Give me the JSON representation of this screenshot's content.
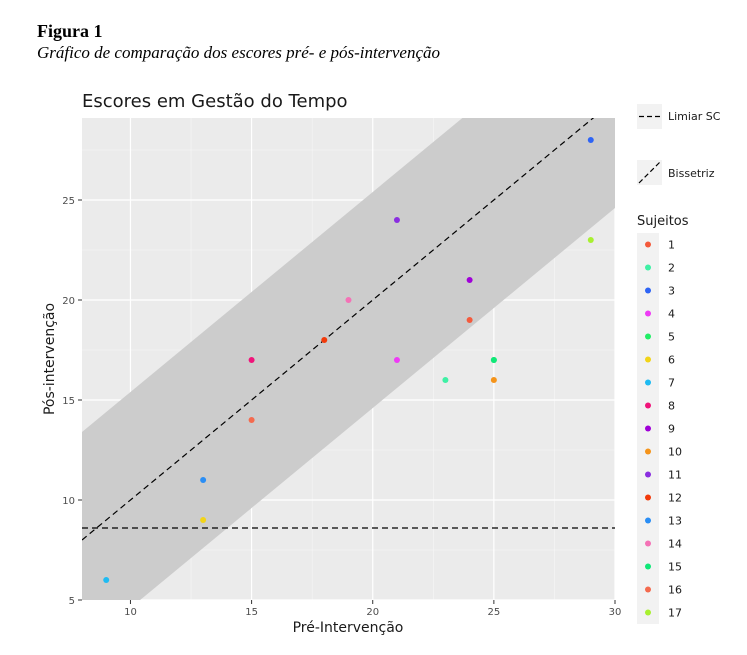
{
  "figure": {
    "number": "Figura 1",
    "caption": "Gráfico de comparação dos escores pré- e pós-intervenção"
  },
  "chart_data": {
    "type": "scatter",
    "title": "Escores em Gestão do Tempo",
    "xlabel": "Pré-Intervenção",
    "ylabel": "Pós-intervenção",
    "xlim": [
      8,
      30
    ],
    "ylim": [
      5,
      29.1
    ],
    "xticks": [
      10,
      15,
      20,
      25,
      30
    ],
    "yticks": [
      5,
      10,
      15,
      20,
      25
    ],
    "grid": true,
    "band_halfwidth": 5.4,
    "reference_lines": [
      {
        "name": "Limiar SC",
        "type": "horizontal",
        "y": 8.6
      },
      {
        "name": "Bissetriz",
        "type": "diagonal",
        "intercept": 0,
        "slope": 1
      }
    ],
    "legend_title": "Sujeitos",
    "legend_position": "right",
    "points": [
      {
        "subject": "1",
        "x": 24,
        "y": 19,
        "color": "#f45a3c"
      },
      {
        "subject": "2",
        "x": 23,
        "y": 16,
        "color": "#3ff0a5"
      },
      {
        "subject": "3",
        "x": 29,
        "y": 28,
        "color": "#2e64f5"
      },
      {
        "subject": "4",
        "x": 21,
        "y": 17,
        "color": "#ee3bf5"
      },
      {
        "subject": "5",
        "x": 25,
        "y": 17,
        "color": "#22ee66"
      },
      {
        "subject": "6",
        "x": 13,
        "y": 9,
        "color": "#f2d418"
      },
      {
        "subject": "7",
        "x": 9,
        "y": 6,
        "color": "#1fbbf2"
      },
      {
        "subject": "8",
        "x": 15,
        "y": 17,
        "color": "#f0147a"
      },
      {
        "subject": "9",
        "x": 24,
        "y": 21,
        "color": "#a000d8"
      },
      {
        "subject": "10",
        "x": 25,
        "y": 16,
        "color": "#f5941a"
      },
      {
        "subject": "11",
        "x": 21,
        "y": 24,
        "color": "#8a2ee0"
      },
      {
        "subject": "12",
        "x": 18,
        "y": 18,
        "color": "#f23a0a"
      },
      {
        "subject": "13",
        "x": 13,
        "y": 11,
        "color": "#2a8ef5"
      },
      {
        "subject": "14",
        "x": 19,
        "y": 20,
        "color": "#f472b6"
      },
      {
        "subject": "15",
        "x": 25,
        "y": 17,
        "color": "#10e878"
      },
      {
        "subject": "16",
        "x": 15,
        "y": 14,
        "color": "#f46a4e"
      },
      {
        "subject": "17",
        "x": 29,
        "y": 23,
        "color": "#a8f030"
      }
    ]
  }
}
